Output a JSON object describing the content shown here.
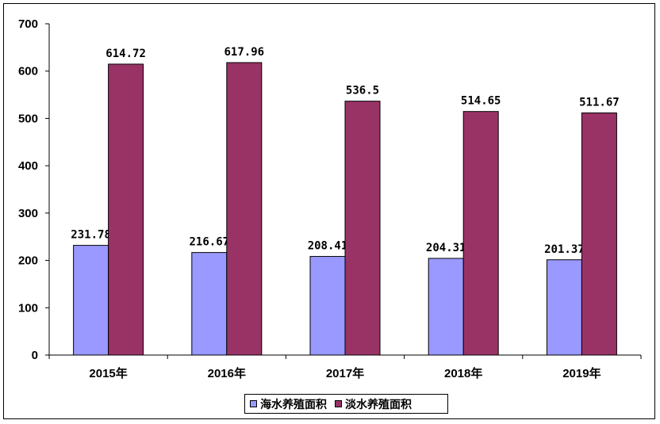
{
  "chart_data": {
    "type": "bar",
    "categories": [
      "2015年",
      "2016年",
      "2017年",
      "2018年",
      "2019年"
    ],
    "series": [
      {
        "name": "海水养殖面积",
        "values": [
          231.78,
          216.67,
          208.41,
          204.31,
          201.37
        ],
        "labels": [
          "231.78",
          "216.67",
          "208.41",
          "204.31",
          "201.37"
        ],
        "color": "#9999ff"
      },
      {
        "name": "淡水养殖面积",
        "values": [
          614.72,
          617.96,
          536.5,
          514.65,
          511.67
        ],
        "labels": [
          "614.72",
          "617.96",
          "536.5",
          "514.65",
          "511.67"
        ],
        "color": "#993366"
      }
    ],
    "ylim": [
      0,
      700
    ],
    "yticks": [
      "0",
      "100",
      "200",
      "300",
      "400",
      "500",
      "600",
      "700"
    ],
    "grid": false,
    "legend_position": "bottom-center"
  }
}
